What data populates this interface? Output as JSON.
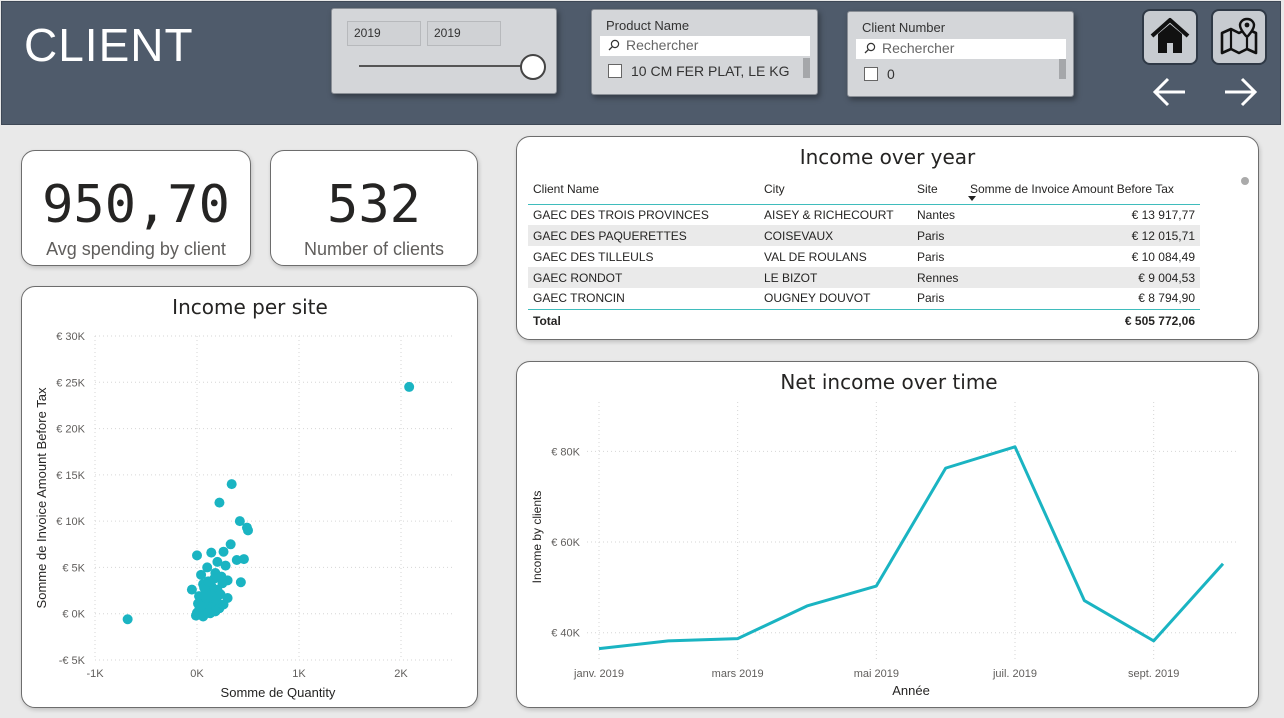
{
  "header": {
    "title": "CLIENT",
    "year_slicer": {
      "start": "2019",
      "end": "2019",
      "value": 1.0
    },
    "product_slicer": {
      "title": "Product Name",
      "search_placeholder": "Rechercher",
      "first_item": "10 CM FER PLAT, LE KG"
    },
    "client_slicer": {
      "title": "Client Number",
      "search_placeholder": "Rechercher",
      "first_item": "0"
    },
    "nav": {
      "home_icon": "home-icon",
      "map_icon": "map-icon",
      "back_icon": "arrow-left-icon",
      "forward_icon": "arrow-right-icon"
    }
  },
  "kpis": {
    "avg": {
      "value": "950,70",
      "label": "Avg spending by client"
    },
    "count": {
      "value": "532",
      "label": "Number of clients"
    }
  },
  "income_table": {
    "title": "Income over year",
    "columns": [
      "Client Name",
      "City",
      "Site",
      "Somme de Invoice Amount Before Tax"
    ],
    "rows": [
      [
        "GAEC DES TROIS PROVINCES",
        "AISEY & RICHECOURT",
        "Nantes",
        "€ 13 917,77"
      ],
      [
        "GAEC DES PAQUERETTES",
        "COISEVAUX",
        "Paris",
        "€ 12 015,71"
      ],
      [
        "GAEC DES TILLEULS",
        "VAL DE ROULANS",
        "Paris",
        "€ 10 084,49"
      ],
      [
        "GAEC RONDOT",
        "LE BIZOT",
        "Rennes",
        "€ 9 004,53"
      ],
      [
        "GAEC TRONCIN",
        "OUGNEY DOUVOT",
        "Paris",
        "€ 8 794,90"
      ]
    ],
    "total_label": "Total",
    "total_value": "€ 505 772,06"
  },
  "chart_data": [
    {
      "type": "scatter",
      "title": "Income per site",
      "xlabel": "Somme de Quantity",
      "ylabel": "Somme de Invoice Amount Before Tax",
      "xlim": [
        -1000,
        2500
      ],
      "ylim": [
        -5000,
        30000
      ],
      "x_ticks": [
        -1000,
        0,
        1000,
        2000
      ],
      "x_tick_labels": [
        "-1K",
        "0K",
        "1K",
        "2K"
      ],
      "y_ticks": [
        -5000,
        0,
        5000,
        10000,
        15000,
        20000,
        25000,
        30000
      ],
      "y_tick_labels": [
        "-€ 5K",
        "€ 0K",
        "€ 5K",
        "€ 10K",
        "€ 15K",
        "€ 20K",
        "€ 25K",
        "€ 30K"
      ],
      "color": "#1ab4c2",
      "grid": true,
      "points": [
        {
          "x": 2080,
          "y": 24500
        },
        {
          "x": -680,
          "y": -600
        },
        {
          "x": 340,
          "y": 14000
        },
        {
          "x": 220,
          "y": 12000
        },
        {
          "x": 420,
          "y": 10000
        },
        {
          "x": 500,
          "y": 9000
        },
        {
          "x": 490,
          "y": 9300
        },
        {
          "x": 330,
          "y": 7500
        },
        {
          "x": 260,
          "y": 6700
        },
        {
          "x": 140,
          "y": 6600
        },
        {
          "x": 0,
          "y": 6300
        },
        {
          "x": 460,
          "y": 5900
        },
        {
          "x": 390,
          "y": 5800
        },
        {
          "x": 280,
          "y": 5200
        },
        {
          "x": 200,
          "y": 5600
        },
        {
          "x": 100,
          "y": 5000
        },
        {
          "x": 40,
          "y": 4200
        },
        {
          "x": 180,
          "y": 4400
        },
        {
          "x": 300,
          "y": 3600
        },
        {
          "x": 430,
          "y": 3400
        },
        {
          "x": 250,
          "y": 3300
        },
        {
          "x": 60,
          "y": 3200
        },
        {
          "x": 140,
          "y": 3000
        },
        {
          "x": -50,
          "y": 2600
        },
        {
          "x": 200,
          "y": 2600
        },
        {
          "x": 90,
          "y": 2300
        },
        {
          "x": 230,
          "y": 2100
        },
        {
          "x": 20,
          "y": 1900
        },
        {
          "x": 160,
          "y": 1800
        },
        {
          "x": 60,
          "y": 1500
        },
        {
          "x": 120,
          "y": 1300
        },
        {
          "x": 200,
          "y": 1200
        },
        {
          "x": 10,
          "y": 1100
        },
        {
          "x": 80,
          "y": 900
        },
        {
          "x": 150,
          "y": 700
        },
        {
          "x": 30,
          "y": 600
        },
        {
          "x": 220,
          "y": 600
        },
        {
          "x": 100,
          "y": 400
        },
        {
          "x": 50,
          "y": 200
        },
        {
          "x": 0,
          "y": 100
        },
        {
          "x": 130,
          "y": 50
        },
        {
          "x": 180,
          "y": 250
        },
        {
          "x": 260,
          "y": 1000
        },
        {
          "x": 70,
          "y": 2800
        },
        {
          "x": 170,
          "y": 3800
        },
        {
          "x": 110,
          "y": 3500
        },
        {
          "x": 240,
          "y": 4000
        },
        {
          "x": 20,
          "y": 400
        },
        {
          "x": 90,
          "y": 1700
        },
        {
          "x": 140,
          "y": 2000
        },
        {
          "x": 40,
          "y": 800
        },
        {
          "x": -10,
          "y": -200
        },
        {
          "x": 60,
          "y": -300
        },
        {
          "x": 110,
          "y": 100
        },
        {
          "x": 190,
          "y": 1500
        },
        {
          "x": 300,
          "y": 1700
        },
        {
          "x": 70,
          "y": 2000
        }
      ]
    },
    {
      "type": "line",
      "title": "Net income over time",
      "xlabel": "Année",
      "ylabel": "Income by clients",
      "x": [
        "janv. 2019",
        "févr. 2019",
        "mars 2019",
        "avr. 2019",
        "mai 2019",
        "juin 2019",
        "juil. 2019",
        "août 2019",
        "sept. 2019",
        "oct. 2019"
      ],
      "x_tick_labels": [
        "janv. 2019",
        "mars 2019",
        "mai 2019",
        "juil. 2019",
        "sept. 2019"
      ],
      "values": [
        36500,
        38200,
        38700,
        45900,
        50300,
        76300,
        81000,
        47100,
        38200,
        55200
      ],
      "ylim": [
        32000,
        90000
      ],
      "y_ticks": [
        40000,
        60000,
        80000
      ],
      "y_tick_labels": [
        "€ 40K",
        "€ 60K",
        "€ 80K"
      ],
      "color": "#1ab4c2",
      "grid": true
    }
  ]
}
